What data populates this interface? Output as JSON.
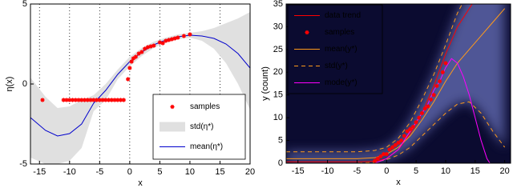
{
  "chart_data": [
    {
      "type": "line",
      "xlabel": "x",
      "ylabel": "η(x)",
      "xlim": [
        -16.5,
        20
      ],
      "ylim": [
        -5,
        5
      ],
      "xticks": [
        -15,
        -10,
        -5,
        0,
        5,
        10,
        15,
        20
      ],
      "yticks": [
        -5,
        0,
        5
      ],
      "grid": "x",
      "legend": "lower right",
      "background": "#ffffff",
      "series": [
        {
          "name": "samples",
          "kind": "scatter",
          "color": "#ff0000",
          "x": [
            -14.5,
            -11,
            -10.5,
            -10,
            -9.5,
            -9,
            -8.5,
            -8,
            -7.5,
            -7,
            -6.5,
            -6,
            -5.5,
            -5,
            -4.5,
            -4,
            -3.5,
            -3,
            -2.5,
            -2,
            -1.5,
            -1,
            -0.3,
            0,
            0.3,
            0.6,
            1,
            1.5,
            2,
            2.5,
            3,
            3.5,
            4,
            5,
            5.5,
            6,
            6.5,
            7,
            7.5,
            8,
            9,
            10
          ],
          "values": [
            -1,
            -1,
            -1,
            -1,
            -1,
            -1,
            -1,
            -1,
            -1,
            -1,
            -1,
            -1,
            -1,
            -1,
            -1,
            -1,
            -1,
            -1,
            -1,
            -1,
            -1,
            -1,
            0.3,
            1.0,
            1.4,
            1.6,
            1.7,
            1.9,
            2.0,
            2.2,
            2.3,
            2.35,
            2.4,
            2.6,
            2.55,
            2.7,
            2.75,
            2.8,
            2.85,
            2.9,
            3.0,
            3.1
          ]
        },
        {
          "name": "std(η*)",
          "kind": "band",
          "color": "#e0e0e0",
          "x": [
            -16.5,
            -14,
            -12,
            -10,
            -8,
            -6,
            -4,
            -2,
            0,
            2,
            4,
            6,
            8,
            10,
            12,
            14,
            16,
            18,
            20
          ],
          "lower": [
            -4.6,
            -5,
            -5,
            -4.8,
            -4,
            -1.7,
            -1,
            0.3,
            1.1,
            1.75,
            2.25,
            2.6,
            2.8,
            2.9,
            2.7,
            2.2,
            1.3,
            0,
            -1.6
          ],
          "upper": [
            0.4,
            -0.8,
            -1.5,
            -1.4,
            -1,
            -0.7,
            0,
            0.9,
            1.7,
            2.25,
            2.65,
            2.9,
            3.1,
            3.2,
            3.3,
            3.5,
            3.8,
            4.1,
            4.5
          ]
        },
        {
          "name": "mean(η*)",
          "kind": "line",
          "color": "#0000cc",
          "x": [
            -16.5,
            -14,
            -12,
            -10,
            -8,
            -6,
            -4,
            -2,
            0,
            2,
            4,
            6,
            8,
            10,
            12,
            14,
            16,
            18,
            20
          ],
          "values": [
            -2.1,
            -2.9,
            -3.25,
            -3.1,
            -2.5,
            -1.2,
            -0.4,
            0.6,
            1.4,
            2.0,
            2.45,
            2.75,
            2.95,
            3.05,
            3.0,
            2.85,
            2.5,
            1.9,
            1.0
          ]
        }
      ]
    },
    {
      "type": "line",
      "xlabel": "x",
      "ylabel": "y (count)",
      "xlim": [
        -17,
        21
      ],
      "ylim": [
        0,
        35
      ],
      "xticks": [
        -15,
        -10,
        -5,
        0,
        5,
        10,
        15,
        20
      ],
      "yticks": [
        0,
        5,
        10,
        15,
        20,
        25,
        30,
        35
      ],
      "grid": "none",
      "legend": "upper left",
      "background": "#0b0b30",
      "series": [
        {
          "name": "data trend",
          "kind": "line",
          "color": "#ff0000",
          "x": [
            -17,
            -15,
            -10,
            -5,
            -2,
            0,
            2,
            4,
            6,
            8,
            10,
            12,
            14.5
          ],
          "values": [
            0.3,
            0.3,
            0.3,
            0.3,
            0.4,
            1,
            3,
            6.5,
            11,
            17,
            24,
            30,
            35
          ]
        },
        {
          "name": "samples",
          "kind": "scatter",
          "color": "#ff0000",
          "x": [
            -2,
            -1.5,
            -1,
            -0.5,
            0,
            0.5,
            1,
            1.5,
            2,
            2.5,
            3,
            3.5,
            4,
            4.5,
            5,
            5.5,
            6,
            6.5,
            7,
            7.5,
            8,
            8.5,
            9,
            9.5,
            10
          ],
          "values": [
            0.5,
            1,
            1.5,
            2,
            2,
            3,
            3.5,
            4,
            4.5,
            5,
            6,
            7,
            7.5,
            8,
            9,
            10,
            11,
            12,
            12.5,
            14,
            15,
            17,
            18,
            20,
            22
          ]
        },
        {
          "name": "mean(y*)",
          "kind": "line",
          "color": "#ff9a1a",
          "x": [
            -17,
            -10,
            -5,
            -2,
            0,
            2,
            4,
            6,
            8,
            10,
            12,
            14,
            16,
            18,
            20
          ],
          "values": [
            1,
            1,
            1,
            1.2,
            2,
            3.5,
            6,
            9.5,
            13.5,
            18,
            22,
            25,
            28,
            31,
            34
          ]
        },
        {
          "name": "std(y*)",
          "kind": "dashed-band",
          "color": "#ff9a1a",
          "x": [
            -17,
            -10,
            -5,
            -2,
            0,
            2,
            4,
            6,
            8,
            10,
            12,
            14,
            16,
            18,
            20
          ],
          "lower": [
            0,
            0,
            0,
            0.2,
            0.8,
            1.8,
            3.5,
            6,
            8.5,
            11,
            13,
            13.5,
            11,
            7,
            3.5
          ],
          "upper": [
            2.5,
            2.5,
            2.5,
            2.8,
            3.5,
            5.5,
            9,
            14,
            19.5,
            26,
            33,
            38,
            42,
            46,
            50
          ]
        },
        {
          "name": "mode(y*)",
          "kind": "line",
          "color": "#ff00ff",
          "x": [
            -17,
            -5,
            -2,
            -1,
            0,
            1,
            2,
            3,
            4,
            5,
            6,
            7,
            8,
            9,
            10,
            11,
            12,
            13,
            14,
            15,
            16,
            17,
            17.5,
            20
          ],
          "values": [
            0,
            0,
            0,
            0.5,
            1,
            2,
            3,
            5,
            7,
            9,
            11,
            13,
            16,
            18,
            21,
            23,
            22,
            19,
            15,
            10,
            5,
            1,
            0,
            0
          ]
        }
      ]
    }
  ]
}
